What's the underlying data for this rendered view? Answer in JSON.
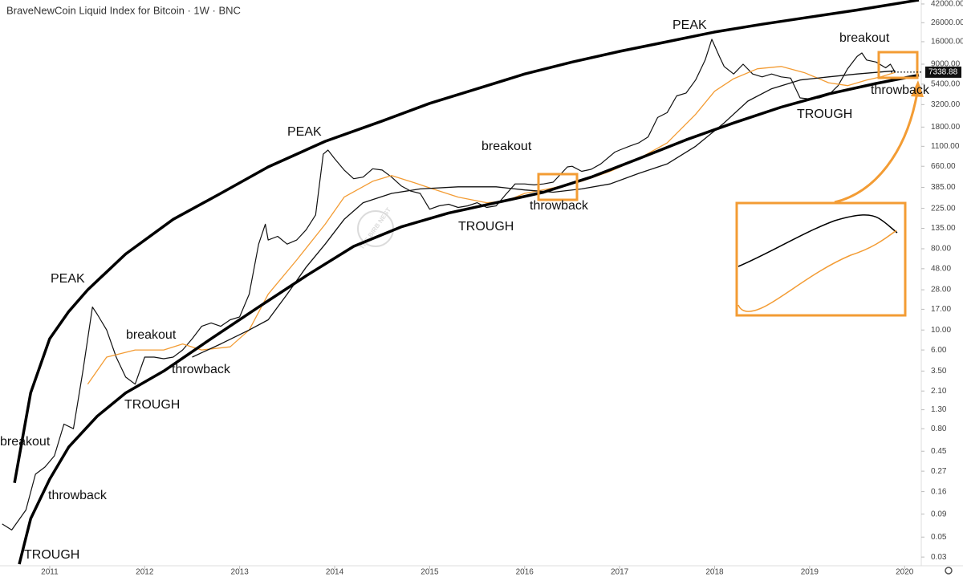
{
  "chart_data": {
    "type": "line",
    "title": "BraveNewCoin Liquid Index for Bitcoin · 1W · BNC",
    "watermark": "THE BIRB NEST",
    "log_scale": true,
    "xlim": [
      2010.477,
      2020.15
    ],
    "xticks": [
      2011,
      2012,
      2013,
      2014,
      2015,
      2016,
      2017,
      2018,
      2019,
      2020
    ],
    "ylim": [
      0.024,
      46500
    ],
    "yticks": [
      {
        "value": 42000,
        "label": "42000.00"
      },
      {
        "value": 26000,
        "label": "26000.00"
      },
      {
        "value": 16000,
        "label": "16000.00"
      },
      {
        "value": 9000,
        "label": "9000.00"
      },
      {
        "value": 5400,
        "label": "5400.00"
      },
      {
        "value": 3200,
        "label": "3200.00"
      },
      {
        "value": 1800,
        "label": "1800.00"
      },
      {
        "value": 1100,
        "label": "1100.00"
      },
      {
        "value": 660,
        "label": "660.00"
      },
      {
        "value": 385,
        "label": "385.00"
      },
      {
        "value": 225,
        "label": "225.00"
      },
      {
        "value": 135,
        "label": "135.00"
      },
      {
        "value": 80,
        "label": "80.00"
      },
      {
        "value": 48,
        "label": "48.00"
      },
      {
        "value": 28,
        "label": "28.00"
      },
      {
        "value": 17,
        "label": "17.00"
      },
      {
        "value": 10,
        "label": "10.00"
      },
      {
        "value": 6,
        "label": "6.00"
      },
      {
        "value": 3.5,
        "label": "3.50"
      },
      {
        "value": 2.1,
        "label": "2.10"
      },
      {
        "value": 1.3,
        "label": "1.30"
      },
      {
        "value": 0.8,
        "label": "0.80"
      },
      {
        "value": 0.45,
        "label": "0.45"
      },
      {
        "value": 0.27,
        "label": "0.27"
      },
      {
        "value": 0.16,
        "label": "0.16"
      },
      {
        "value": 0.09,
        "label": "0.09"
      },
      {
        "value": 0.05,
        "label": "0.05"
      },
      {
        "value": 0.03,
        "label": "0.03"
      }
    ],
    "last_price": 7338.88,
    "series": [
      {
        "color": "#111111",
        "line_width": 1.2,
        "x": [
          2010.5,
          2010.6,
          2010.75,
          2010.85,
          2010.95,
          2011.05,
          2011.15,
          2011.25,
          2011.35,
          2011.45,
          2011.5,
          2011.6,
          2011.7,
          2011.8,
          2011.9,
          2012.0,
          2012.1,
          2012.2,
          2012.3,
          2012.4,
          2012.5,
          2012.6,
          2012.7,
          2012.8,
          2012.9,
          2013.0,
          2013.1,
          2013.2,
          2013.27,
          2013.3,
          2013.4,
          2013.5,
          2013.6,
          2013.7,
          2013.8,
          2013.88,
          2013.93,
          2014.0,
          2014.1,
          2014.2,
          2014.3,
          2014.4,
          2014.5,
          2014.6,
          2014.7,
          2014.8,
          2014.9,
          2015.0,
          2015.1,
          2015.2,
          2015.3,
          2015.4,
          2015.5,
          2015.6,
          2015.7,
          2015.8,
          2015.9,
          2016.0,
          2016.1,
          2016.2,
          2016.3,
          2016.45,
          2016.5,
          2016.6,
          2016.7,
          2016.8,
          2016.95,
          2017.0,
          2017.1,
          2017.2,
          2017.3,
          2017.4,
          2017.5,
          2017.6,
          2017.7,
          2017.8,
          2017.9,
          2017.97,
          2018.05,
          2018.1,
          2018.2,
          2018.3,
          2018.4,
          2018.5,
          2018.6,
          2018.7,
          2018.8,
          2018.9,
          2019.0,
          2019.1,
          2019.2,
          2019.3,
          2019.4,
          2019.5,
          2019.55,
          2019.6,
          2019.7,
          2019.8,
          2019.85,
          2019.9
        ],
        "values": [
          0.07,
          0.06,
          0.1,
          0.25,
          0.3,
          0.4,
          0.9,
          0.8,
          3.5,
          18,
          15,
          10,
          5,
          3,
          2.5,
          5,
          5,
          4.8,
          5,
          6,
          8,
          11,
          12,
          11,
          13,
          14,
          25,
          90,
          150,
          100,
          110,
          90,
          100,
          130,
          190,
          900,
          1000,
          800,
          600,
          480,
          500,
          620,
          600,
          500,
          400,
          350,
          330,
          220,
          240,
          250,
          230,
          240,
          260,
          230,
          240,
          320,
          420,
          420,
          410,
          420,
          440,
          650,
          660,
          580,
          610,
          700,
          950,
          1000,
          1100,
          1200,
          1400,
          2300,
          2600,
          4000,
          4300,
          6000,
          10000,
          17000,
          11000,
          8500,
          7000,
          9000,
          7000,
          6500,
          7000,
          6500,
          6300,
          3800,
          3700,
          3800,
          4100,
          5200,
          8000,
          11000,
          12000,
          10000,
          9500,
          8200,
          9000,
          7338.88
        ]
      },
      {
        "color": "#f39c34",
        "line_width": 1.3,
        "x": [
          2011.4,
          2011.6,
          2011.9,
          2012.2,
          2012.4,
          2012.6,
          2012.9,
          2013.1,
          2013.3,
          2013.6,
          2013.9,
          2014.1,
          2014.4,
          2014.6,
          2014.85,
          2015.0,
          2015.3,
          2015.6,
          2015.8,
          2016.0,
          2016.3,
          2016.6,
          2016.9,
          2017.2,
          2017.5,
          2017.8,
          2018.0,
          2018.2,
          2018.45,
          2018.7,
          2018.95,
          2019.2,
          2019.4,
          2019.6,
          2019.75,
          2019.9
        ],
        "values": [
          2.5,
          5,
          6,
          6,
          7,
          6,
          6.5,
          10,
          25,
          60,
          150,
          300,
          450,
          520,
          430,
          380,
          300,
          260,
          270,
          330,
          380,
          450,
          580,
          800,
          1200,
          2500,
          4500,
          6200,
          8000,
          8500,
          7200,
          5600,
          5200,
          6000,
          6500,
          7300
        ]
      },
      {
        "color": "#111111",
        "line_width": 1.3,
        "x": [
          2012.5,
          2012.8,
          2013.1,
          2013.3,
          2013.5,
          2013.7,
          2013.9,
          2014.1,
          2014.3,
          2014.6,
          2014.9,
          2015.3,
          2015.7,
          2016.0,
          2016.3,
          2016.6,
          2016.9,
          2017.2,
          2017.5,
          2017.8,
          2018.1,
          2018.35,
          2018.6,
          2018.9,
          2019.2,
          2019.5,
          2019.9
        ],
        "values": [
          5,
          7,
          10,
          13,
          25,
          50,
          90,
          170,
          260,
          330,
          370,
          390,
          390,
          360,
          340,
          370,
          420,
          550,
          700,
          1100,
          2000,
          3500,
          4800,
          6000,
          6500,
          7000,
          7600
        ]
      },
      {
        "color": "#000000",
        "line_width": 3.5,
        "x": [
          2010.63,
          2010.8,
          2011.0,
          2011.2,
          2011.4,
          2011.8,
          2012.3,
          2012.8,
          2013.3,
          2013.9,
          2014.5,
          2015.0,
          2015.5,
          2016.0,
          2016.5,
          2017.0,
          2017.5,
          2018.0,
          2018.5,
          2019.0,
          2019.5,
          2020.15
        ],
        "values": [
          0.2,
          2,
          8,
          16,
          28,
          70,
          170,
          330,
          650,
          1250,
          2100,
          3300,
          4800,
          7000,
          9500,
          12500,
          16000,
          20500,
          25000,
          30000,
          36000,
          46500
        ]
      },
      {
        "color": "#000000",
        "line_width": 3.5,
        "x": [
          2010.68,
          2010.8,
          2011.0,
          2011.2,
          2011.5,
          2011.8,
          2012.2,
          2012.7,
          2013.2,
          2013.7,
          2014.2,
          2014.7,
          2015.2,
          2015.7,
          2016.2,
          2016.7,
          2017.2,
          2017.7,
          2018.2,
          2018.7,
          2019.2,
          2019.7,
          2020.15
        ],
        "values": [
          0.025,
          0.08,
          0.22,
          0.5,
          1.1,
          2,
          3.5,
          8,
          18,
          40,
          85,
          140,
          200,
          260,
          340,
          500,
          800,
          1300,
          2000,
          3000,
          4200,
          5500,
          6800
        ]
      }
    ],
    "annotations": [
      "PEAK",
      "breakout",
      "throwback",
      "TROUGH",
      "breakout",
      "throwback",
      "TROUGH",
      "PEAK",
      "breakout",
      "throwback",
      "TROUGH",
      "PEAK",
      "breakout",
      "throwback",
      "TROUGH"
    ]
  }
}
